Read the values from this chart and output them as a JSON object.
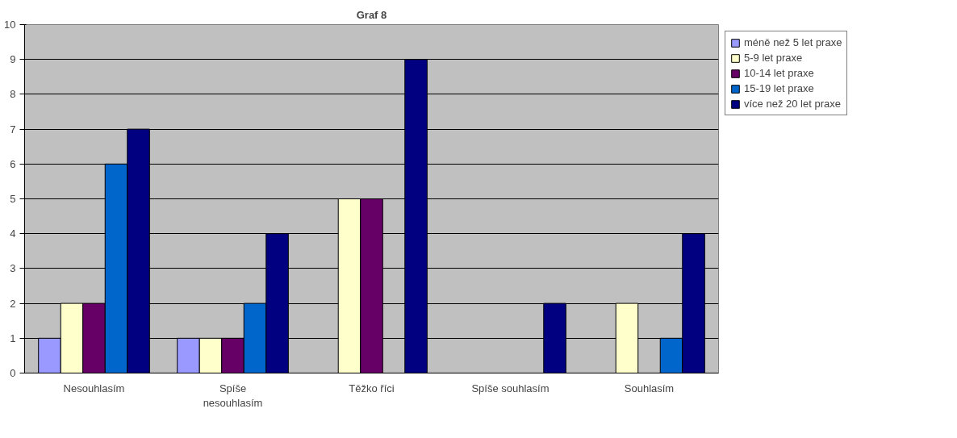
{
  "chart_data": {
    "type": "bar",
    "title": "Graf 8",
    "categories": [
      "Nesouhlasím",
      "Spíše nesouhlasím",
      "Těžko říci",
      "Spíše souhlasím",
      "Souhlasím"
    ],
    "series": [
      {
        "name": "méně než 5 let praxe",
        "color": "#9999ff",
        "values": [
          1,
          1,
          null,
          null,
          null
        ]
      },
      {
        "name": "5-9 let praxe",
        "color": "#ffffcc",
        "values": [
          2,
          1,
          5,
          null,
          2
        ]
      },
      {
        "name": "10-14 let praxe",
        "color": "#660066",
        "values": [
          2,
          1,
          5,
          null,
          null
        ]
      },
      {
        "name": "15-19 let praxe",
        "color": "#0066cc",
        "values": [
          6,
          2,
          null,
          null,
          1
        ]
      },
      {
        "name": "více než 20 let praxe",
        "color": "#000080",
        "values": [
          7,
          4,
          9,
          2,
          4
        ]
      }
    ],
    "ylim": [
      0,
      10
    ],
    "yticks": [
      0,
      1,
      2,
      3,
      4,
      5,
      6,
      7,
      8,
      9,
      10
    ],
    "grid": "y",
    "legend": "right"
  }
}
